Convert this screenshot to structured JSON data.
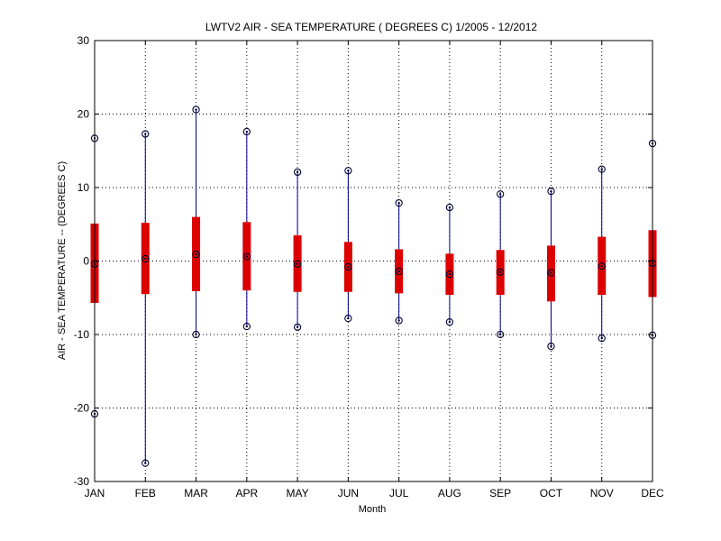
{
  "chart_data": {
    "type": "box",
    "title": "LWTV2  AIR - SEA TEMPERATURE ( DEGREES C) 1/2005 - 12/2012",
    "xlabel": "Month",
    "ylabel": "AIR - SEA TEMPERATURE -- (DEGREES C)",
    "ylim": [
      -30,
      30
    ],
    "yticks": [
      -30,
      -20,
      -10,
      0,
      10,
      20,
      30
    ],
    "grid": true,
    "categories": [
      "JAN",
      "FEB",
      "MAR",
      "APR",
      "MAY",
      "JUN",
      "JUL",
      "AUG",
      "SEP",
      "OCT",
      "NOV",
      "DEC"
    ],
    "max": [
      16.7,
      17.3,
      20.6,
      17.6,
      12.1,
      12.3,
      7.9,
      7.3,
      9.1,
      9.5,
      12.5,
      16.0
    ],
    "q3": [
      5.1,
      5.2,
      6.0,
      5.3,
      3.5,
      2.6,
      1.6,
      1.0,
      1.5,
      2.1,
      3.3,
      4.2
    ],
    "median": [
      -0.4,
      0.3,
      0.9,
      0.6,
      -0.4,
      -0.8,
      -1.4,
      -1.8,
      -1.5,
      -1.6,
      -0.7,
      -0.3
    ],
    "q1": [
      -5.7,
      -4.5,
      -4.1,
      -4.0,
      -4.2,
      -4.2,
      -4.4,
      -4.6,
      -4.6,
      -5.5,
      -4.6,
      -4.9
    ],
    "min": [
      -20.8,
      -27.5,
      -10.0,
      -8.9,
      -9.0,
      -7.8,
      -8.1,
      -8.3,
      -10.0,
      -11.6,
      -10.5,
      -10.1
    ],
    "colors": {
      "whisker": "#00008b",
      "box": "#dd0000",
      "marker": "#000033",
      "grid": "#000000",
      "axis": "#000000"
    }
  }
}
